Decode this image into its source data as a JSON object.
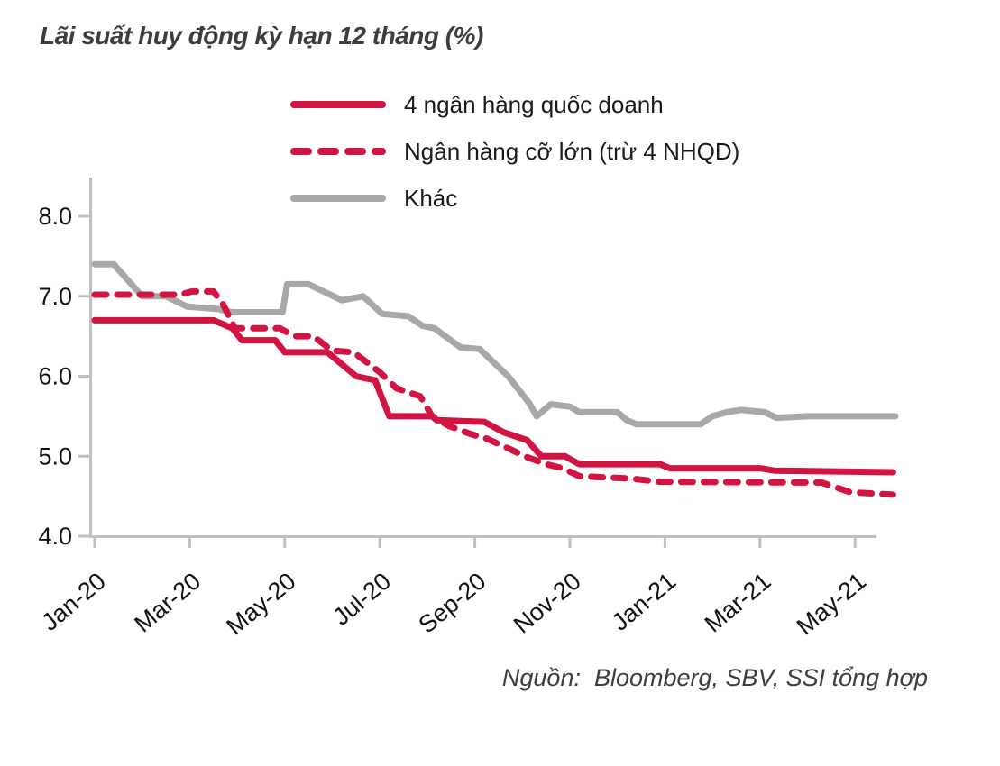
{
  "title": "Lãi suất huy động kỳ hạn 12 tháng (%)",
  "source": "Nguồn:  Bloomberg, SBV, SSI tổng hợp",
  "colors": {
    "red": "#d21442",
    "gray": "#a8a8a8",
    "axis": "#bfbfbf",
    "tick_text": "#111111",
    "title_text": "#3d3d3d"
  },
  "legend": [
    {
      "label": "4 ngân hàng quốc doanh",
      "color": "red",
      "style": "solid"
    },
    {
      "label": "Ngân hàng cỡ lớn (trừ 4 NHQD)",
      "color": "red",
      "style": "dashed"
    },
    {
      "label": "Khác",
      "color": "gray",
      "style": "solid"
    }
  ],
  "chart_data": {
    "type": "line",
    "title": "Lãi suất huy động kỳ hạn 12 tháng (%)",
    "ylabel": "%",
    "ylim": [
      4.0,
      8.45
    ],
    "xlim_months": [
      0,
      17
    ],
    "grid": false,
    "legend_position": "top",
    "x_unit": "months since Jan-2020",
    "x_ticks": [
      {
        "m": 0,
        "label": "Jan-20"
      },
      {
        "m": 2,
        "label": "Mar-20"
      },
      {
        "m": 4,
        "label": "May-20"
      },
      {
        "m": 6,
        "label": "Jul-20"
      },
      {
        "m": 8,
        "label": "Sep-20"
      },
      {
        "m": 10,
        "label": "Nov-20"
      },
      {
        "m": 12,
        "label": "Jan-21"
      },
      {
        "m": 14,
        "label": "Mar-21"
      },
      {
        "m": 16,
        "label": "May-21"
      }
    ],
    "y_ticks": [
      {
        "v": 4.0,
        "label": "4.0"
      },
      {
        "v": 5.0,
        "label": "5.0"
      },
      {
        "v": 6.0,
        "label": "6.0"
      },
      {
        "v": 7.0,
        "label": "7.0"
      },
      {
        "v": 8.0,
        "label": "8.0"
      }
    ],
    "series": [
      {
        "name": "Khác",
        "key": "khac",
        "color": "gray",
        "style": "solid",
        "points": [
          [
            0,
            7.4
          ],
          [
            0.4,
            7.4
          ],
          [
            1.0,
            7.0
          ],
          [
            1.5,
            7.0
          ],
          [
            1.95,
            6.87
          ],
          [
            2.6,
            6.84
          ],
          [
            2.9,
            6.8
          ],
          [
            3.95,
            6.8
          ],
          [
            4.05,
            7.15
          ],
          [
            4.5,
            7.15
          ],
          [
            5.2,
            6.95
          ],
          [
            5.65,
            7.0
          ],
          [
            6.05,
            6.78
          ],
          [
            6.6,
            6.75
          ],
          [
            6.9,
            6.63
          ],
          [
            7.15,
            6.6
          ],
          [
            7.7,
            6.36
          ],
          [
            8.1,
            6.34
          ],
          [
            8.7,
            6.0
          ],
          [
            9.15,
            5.66
          ],
          [
            9.3,
            5.5
          ],
          [
            9.6,
            5.65
          ],
          [
            10.0,
            5.62
          ],
          [
            10.2,
            5.55
          ],
          [
            11.0,
            5.55
          ],
          [
            11.2,
            5.45
          ],
          [
            11.4,
            5.4
          ],
          [
            12.75,
            5.4
          ],
          [
            13.0,
            5.5
          ],
          [
            13.3,
            5.55
          ],
          [
            13.6,
            5.58
          ],
          [
            14.1,
            5.55
          ],
          [
            14.35,
            5.48
          ],
          [
            15.0,
            5.5
          ],
          [
            16.85,
            5.5
          ]
        ]
      },
      {
        "name": "4 ngân hàng quốc doanh",
        "key": "4-ngan-hang-quoc-doanh",
        "color": "red",
        "style": "solid",
        "points": [
          [
            0,
            6.7
          ],
          [
            2.5,
            6.7
          ],
          [
            2.9,
            6.6
          ],
          [
            3.1,
            6.45
          ],
          [
            3.8,
            6.45
          ],
          [
            4.0,
            6.3
          ],
          [
            4.9,
            6.3
          ],
          [
            5.5,
            6.0
          ],
          [
            5.9,
            5.95
          ],
          [
            6.2,
            5.5
          ],
          [
            7.1,
            5.5
          ],
          [
            7.2,
            5.45
          ],
          [
            8.2,
            5.43
          ],
          [
            8.6,
            5.3
          ],
          [
            9.1,
            5.2
          ],
          [
            9.4,
            5.0
          ],
          [
            9.9,
            5.0
          ],
          [
            10.2,
            4.9
          ],
          [
            11.9,
            4.9
          ],
          [
            12.1,
            4.85
          ],
          [
            14.0,
            4.85
          ],
          [
            14.3,
            4.82
          ],
          [
            16.8,
            4.8
          ]
        ]
      },
      {
        "name": "Ngân hàng cỡ lớn (trừ 4 NHQD)",
        "key": "ngan-hang-co-lon",
        "color": "red",
        "style": "dashed",
        "points": [
          [
            0,
            7.02
          ],
          [
            1.8,
            7.02
          ],
          [
            2.05,
            7.06
          ],
          [
            2.5,
            7.06
          ],
          [
            2.7,
            6.9
          ],
          [
            2.95,
            6.6
          ],
          [
            3.9,
            6.6
          ],
          [
            4.2,
            6.5
          ],
          [
            4.6,
            6.5
          ],
          [
            5.0,
            6.32
          ],
          [
            5.45,
            6.3
          ],
          [
            6.0,
            6.05
          ],
          [
            6.35,
            5.85
          ],
          [
            6.85,
            5.75
          ],
          [
            7.1,
            5.5
          ],
          [
            7.45,
            5.38
          ],
          [
            7.9,
            5.28
          ],
          [
            8.25,
            5.22
          ],
          [
            8.7,
            5.1
          ],
          [
            9.05,
            5.0
          ],
          [
            9.5,
            4.9
          ],
          [
            9.85,
            4.85
          ],
          [
            10.2,
            4.75
          ],
          [
            11.3,
            4.72
          ],
          [
            11.9,
            4.68
          ],
          [
            15.3,
            4.67
          ],
          [
            15.9,
            4.55
          ],
          [
            16.8,
            4.52
          ]
        ]
      }
    ]
  }
}
